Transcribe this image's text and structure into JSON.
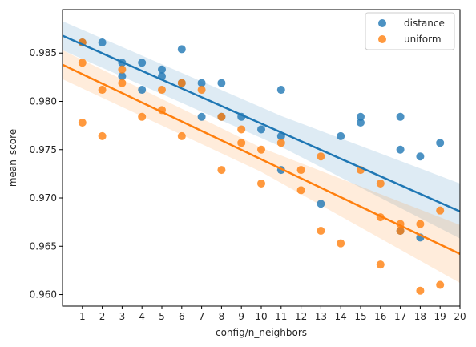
{
  "chart_data": {
    "type": "scatter",
    "title": "",
    "xlabel": "config/n_neighbors",
    "ylabel": "mean_score",
    "xlim": [
      0,
      20
    ],
    "ylim": [
      0.9588,
      0.9895
    ],
    "xticks": [
      "1",
      "2",
      "3",
      "4",
      "5",
      "6",
      "7",
      "8",
      "9",
      "10",
      "11",
      "12",
      "13",
      "14",
      "15",
      "16",
      "17",
      "18",
      "19",
      "20"
    ],
    "yticks": [
      "0.960",
      "0.965",
      "0.970",
      "0.975",
      "0.980",
      "0.985"
    ],
    "grid": false,
    "legend": "top-right",
    "series": [
      {
        "name": "distance",
        "color": "#1f77b4",
        "points": [
          [
            1,
            0.9861
          ],
          [
            2,
            0.9861
          ],
          [
            3,
            0.984
          ],
          [
            3,
            0.9826
          ],
          [
            4,
            0.984
          ],
          [
            4,
            0.9812
          ],
          [
            5,
            0.9833
          ],
          [
            5,
            0.9826
          ],
          [
            6,
            0.9854
          ],
          [
            6,
            0.9819
          ],
          [
            7,
            0.9819
          ],
          [
            7,
            0.9784
          ],
          [
            8,
            0.9819
          ],
          [
            8,
            0.9784
          ],
          [
            9,
            0.9784
          ],
          [
            10,
            0.9771
          ],
          [
            11,
            0.9812
          ],
          [
            11,
            0.9764
          ],
          [
            11,
            0.9729
          ],
          [
            13,
            0.9694
          ],
          [
            14,
            0.9764
          ],
          [
            15,
            0.9784
          ],
          [
            15,
            0.9778
          ],
          [
            17,
            0.9784
          ],
          [
            17,
            0.975
          ],
          [
            17,
            0.9666
          ],
          [
            18,
            0.9743
          ],
          [
            18,
            0.9659
          ],
          [
            19,
            0.9757
          ]
        ],
        "fit": {
          "start": [
            0,
            0.9868
          ],
          "end": [
            20,
            0.9686
          ]
        },
        "ci": {
          "upper": [
            [
              0,
              0.9883
            ],
            [
              11,
              0.9785
            ],
            [
              20,
              0.9715
            ]
          ],
          "lower": [
            [
              0,
              0.9853
            ],
            [
              11,
              0.9753
            ],
            [
              20,
              0.9658
            ]
          ]
        }
      },
      {
        "name": "uniform",
        "color": "#ff7f0e",
        "points": [
          [
            1,
            0.9861
          ],
          [
            1,
            0.984
          ],
          [
            1,
            0.9778
          ],
          [
            2,
            0.9812
          ],
          [
            2,
            0.9764
          ],
          [
            3,
            0.9833
          ],
          [
            3,
            0.9819
          ],
          [
            4,
            0.9784
          ],
          [
            5,
            0.9812
          ],
          [
            5,
            0.9791
          ],
          [
            6,
            0.9819
          ],
          [
            6,
            0.9764
          ],
          [
            7,
            0.9812
          ],
          [
            8,
            0.9784
          ],
          [
            8,
            0.9729
          ],
          [
            9,
            0.9771
          ],
          [
            9,
            0.9757
          ],
          [
            10,
            0.975
          ],
          [
            10,
            0.9715
          ],
          [
            11,
            0.9757
          ],
          [
            12,
            0.9729
          ],
          [
            12,
            0.9708
          ],
          [
            13,
            0.9743
          ],
          [
            13,
            0.9666
          ],
          [
            14,
            0.9653
          ],
          [
            15,
            0.9729
          ],
          [
            16,
            0.9715
          ],
          [
            16,
            0.968
          ],
          [
            16,
            0.9631
          ],
          [
            17,
            0.9673
          ],
          [
            17,
            0.9666
          ],
          [
            18,
            0.9673
          ],
          [
            18,
            0.9604
          ],
          [
            19,
            0.9687
          ],
          [
            19,
            0.961
          ]
        ],
        "fit": {
          "start": [
            0,
            0.9838
          ],
          "end": [
            20,
            0.9642
          ]
        },
        "ci": {
          "upper": [
            [
              0,
              0.9853
            ],
            [
              10,
              0.9752
            ],
            [
              20,
              0.9672
            ]
          ],
          "lower": [
            [
              0,
              0.9823
            ],
            [
              10,
              0.9727
            ],
            [
              20,
              0.9612
            ]
          ]
        }
      }
    ]
  }
}
